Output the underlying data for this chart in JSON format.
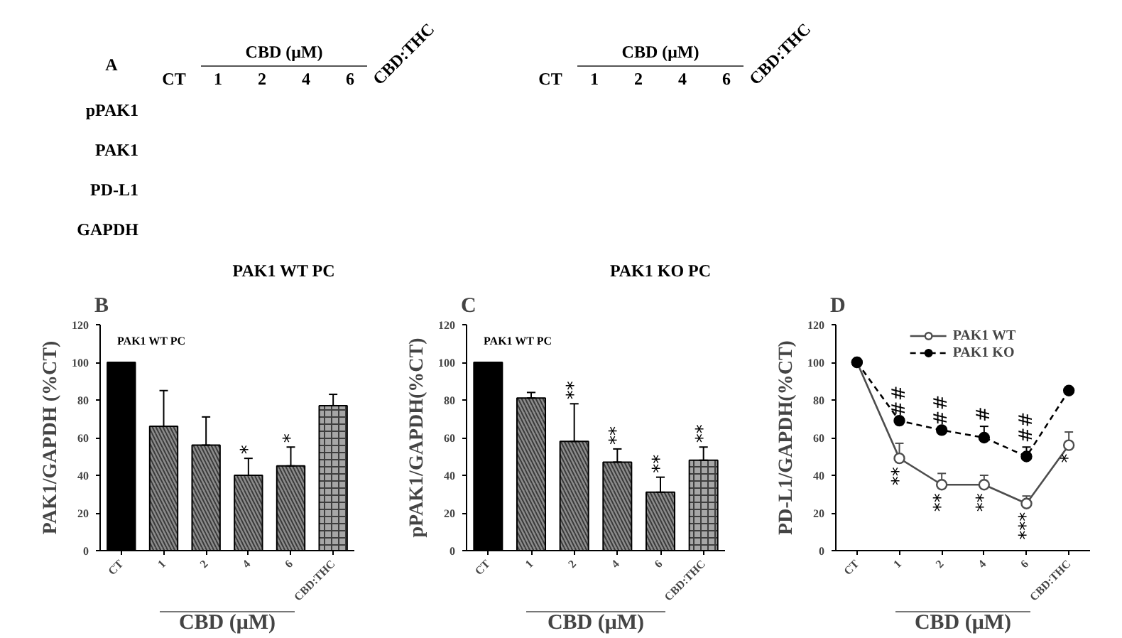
{
  "chart_data": [
    {
      "type": "other",
      "title": "A",
      "categories": [
        "CT",
        "1",
        "2",
        "4",
        "6",
        "CBD:THC"
      ],
      "y_categories": [
        "pPAK1",
        "PAK1",
        "PD-L1",
        "GAPDH"
      ],
      "xlabel": "PAK1 WT PC",
      "annotations": [
        "CBD (μM)"
      ]
    },
    {
      "type": "other",
      "categories": [
        "CT",
        "1",
        "2",
        "4",
        "6",
        "CBD:THC"
      ],
      "xlabel": "PAK1 KO PC",
      "annotations": [
        "CBD (μM)"
      ]
    },
    {
      "type": "bar",
      "title": "B",
      "categories": [
        "CT",
        "1",
        "2",
        "4",
        "6",
        "CBD:THC"
      ],
      "values": [
        100,
        66,
        56,
        40,
        45,
        77
      ],
      "colors": [
        "#000000",
        "#8c8c8c",
        "#8c8c8c",
        "#8c8c8c",
        "#8c8c8c",
        "#a6a6a6"
      ],
      "errors": [
        null,
        [
          66,
          85
        ],
        [
          56,
          71
        ],
        [
          40,
          49
        ],
        [
          45,
          55
        ],
        [
          77,
          83
        ]
      ],
      "ylim": [
        0,
        120
      ],
      "yticks": [
        0,
        20,
        40,
        60,
        80,
        100,
        120
      ],
      "xlabel": "CBD (μM)",
      "ylabel": "PAK1/GAPDH (%CT)",
      "annotations": [
        "PAK1 WT PC",
        {
          "text": "*",
          "x": "4",
          "y": 40
        },
        {
          "text": "*",
          "x": "6",
          "y": 45
        }
      ]
    },
    {
      "type": "bar",
      "title": "C",
      "categories": [
        "CT",
        "1",
        "2",
        "4",
        "6",
        "CBD:THC"
      ],
      "values": [
        100,
        81,
        58,
        47,
        31,
        48
      ],
      "colors": [
        "#000000",
        "#8c8c8c",
        "#8c8c8c",
        "#8c8c8c",
        "#8c8c8c",
        "#a6a6a6"
      ],
      "errors": [
        null,
        [
          81,
          84
        ],
        [
          58,
          78
        ],
        [
          47,
          54
        ],
        [
          31,
          39
        ],
        [
          48,
          55
        ]
      ],
      "ylim": [
        0,
        120
      ],
      "yticks": [
        0,
        20,
        40,
        60,
        80,
        100,
        120
      ],
      "xlabel": "CBD (μM)",
      "ylabel": "pPAK1/GAPDH(%CT)",
      "annotations": [
        "PAK1 WT PC",
        {
          "text": "**",
          "x": "2",
          "y": 58
        },
        {
          "text": "**",
          "x": "4",
          "y": 47
        },
        {
          "text": "**",
          "x": "6",
          "y": 31
        },
        {
          "text": "**",
          "x": "CBD:THC",
          "y": 48
        }
      ]
    },
    {
      "type": "line",
      "title": "D",
      "categories": [
        "CT",
        "1",
        "2",
        "4",
        "6",
        "CBD:THC"
      ],
      "series": [
        {
          "name": "PAK1 WT",
          "color": "#4d4d4d",
          "values": [
            100,
            49,
            35,
            35,
            25,
            56
          ],
          "errors": [
            null,
            [
              49,
              57
            ],
            [
              35,
              41
            ],
            [
              35,
              40
            ],
            [
              25,
              29
            ],
            [
              56,
              63
            ]
          ],
          "line_style": "solid"
        },
        {
          "name": "PAK1 KO",
          "color": "#000000",
          "values": [
            100,
            69,
            64,
            60,
            50,
            85
          ],
          "errors": [
            null,
            null,
            null,
            [
              60,
              66
            ],
            [
              50,
              55
            ],
            null
          ],
          "line_style": "dashed"
        }
      ],
      "marker": "circle",
      "legend": "top",
      "ylim": [
        0,
        120
      ],
      "yticks": [
        0,
        20,
        40,
        60,
        80,
        100,
        120
      ],
      "xlabel": "CBD (μM)",
      "ylabel": "PD-L1/GAPDH(%CT)",
      "annotations": [
        {
          "text": "**",
          "x": "1",
          "y": 49
        },
        {
          "text": "**",
          "x": "2",
          "y": 35
        },
        {
          "text": "**",
          "x": "4",
          "y": 35
        },
        {
          "text": "***",
          "x": "6",
          "y": 25
        },
        {
          "text": "*",
          "x": "CBD:THC",
          "y": 56
        },
        {
          "text": "##",
          "x": "1",
          "y": 69
        },
        {
          "text": "##",
          "x": "2",
          "y": 64
        },
        {
          "text": "#",
          "x": "4",
          "y": 60
        },
        {
          "text": "##",
          "x": "6",
          "y": 50
        }
      ]
    }
  ]
}
